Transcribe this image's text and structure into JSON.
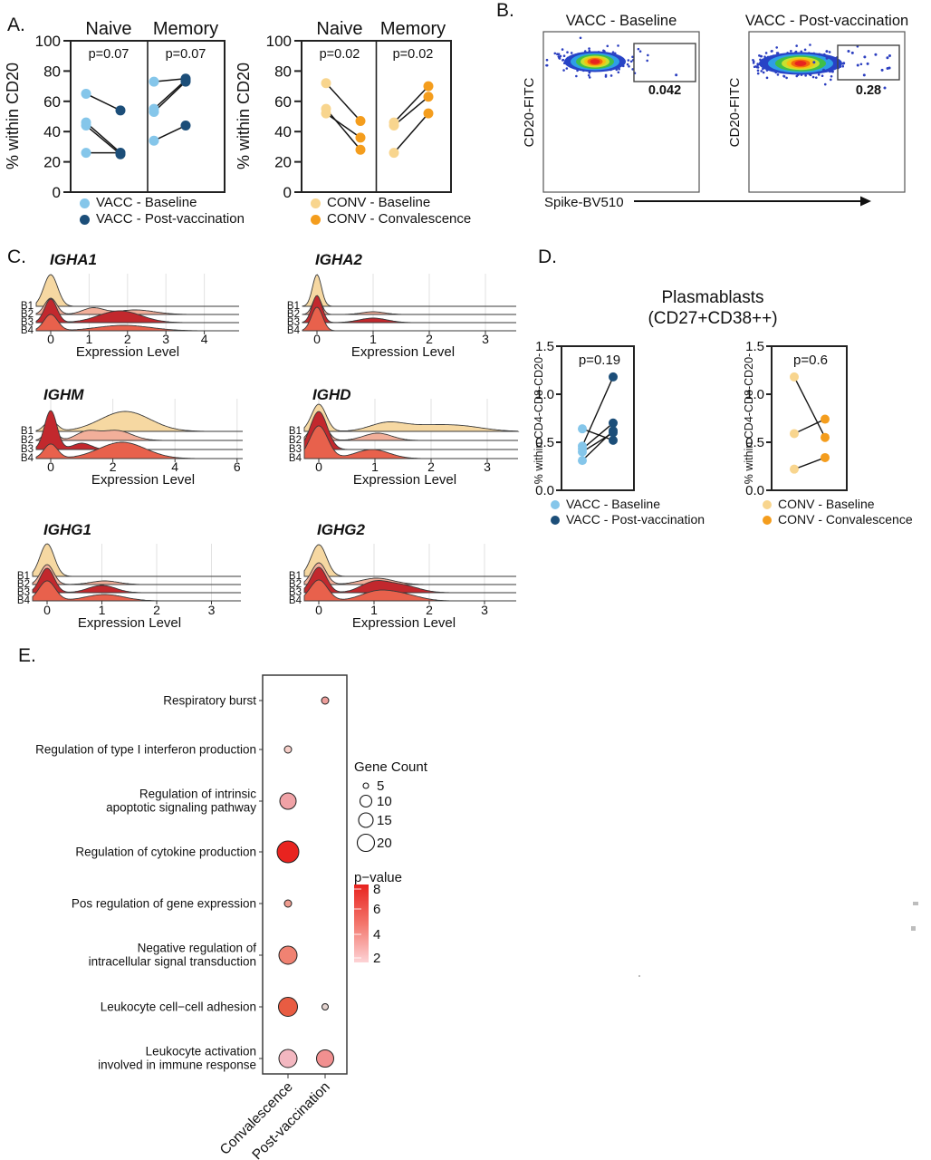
{
  "panel_labels": {
    "A": "A.",
    "B": "B.",
    "C": "C.",
    "D": "D.",
    "E": "E."
  },
  "chart_data": [
    {
      "panel": "A",
      "type": "paired-dot",
      "ylabel": "% within CD20",
      "ylim": [
        0,
        100
      ],
      "yticks": [
        "0",
        "20",
        "40",
        "60",
        "80",
        "100"
      ],
      "groups": [
        "Naive",
        "Memory"
      ],
      "plots": [
        {
          "cohort": "VACC",
          "p_values": [
            "p=0.07",
            "p=0.07"
          ],
          "colors": {
            "baseline": "#85C6EA",
            "post": "#1C4E79"
          },
          "legend": [
            "VACC - Baseline",
            "VACC - Post-vaccination"
          ],
          "pairs_naive": [
            [
              65,
              54
            ],
            [
              46,
              26
            ],
            [
              44,
              25
            ],
            [
              26,
              26
            ]
          ],
          "pairs_memory": [
            [
              73,
              75
            ],
            [
              55,
              74
            ],
            [
              53,
              73
            ],
            [
              34,
              44
            ]
          ]
        },
        {
          "cohort": "CONV",
          "p_values": [
            "p=0.02",
            "p=0.02"
          ],
          "colors": {
            "baseline": "#F8D58E",
            "post": "#F49D1D"
          },
          "legend": [
            "CONV - Baseline",
            "CONV - Convalescence"
          ],
          "pairs_naive": [
            [
              72,
              47
            ],
            [
              55,
              28
            ],
            [
              52,
              36
            ]
          ],
          "pairs_memory": [
            [
              46,
              70
            ],
            [
              44,
              63
            ],
            [
              26,
              52
            ]
          ]
        }
      ]
    },
    {
      "panel": "B",
      "type": "flow-density",
      "xlabel": "Spike-BV510",
      "ylabel": "CD20-FITC",
      "plots": [
        {
          "title": "VACC - Baseline",
          "gate_value": "0.042"
        },
        {
          "title": "VACC - Post-vaccination",
          "gate_value": "0.28"
        }
      ]
    },
    {
      "panel": "C",
      "type": "ridge",
      "xlabel": "Expression Level",
      "rows": [
        "B1",
        "B2",
        "B3",
        "B4"
      ],
      "row_colors": [
        "#F6D8A2",
        "#F2AF9A",
        "#C2282D",
        "#E8614C"
      ],
      "genes": [
        {
          "name": "IGHA1",
          "xticks": [
            0,
            1,
            2,
            3,
            4
          ],
          "density": [
            [
              [
                0,
                0.18,
                35
              ]
            ],
            [
              [
                0,
                0.16,
                18
              ],
              [
                1.1,
                0.28,
                7
              ],
              [
                2.2,
                0.5,
                5
              ]
            ],
            [
              [
                0,
                0.16,
                26
              ],
              [
                1.8,
                0.55,
                13
              ]
            ],
            [
              [
                0,
                0.18,
                18
              ],
              [
                1.9,
                0.7,
                6
              ]
            ]
          ]
        },
        {
          "name": "IGHA2",
          "xticks": [
            0,
            1,
            2,
            3
          ],
          "density": [
            [
              [
                0,
                0.08,
                35
              ]
            ],
            [
              [
                0,
                0.08,
                20
              ],
              [
                1,
                0.2,
                3
              ]
            ],
            [
              [
                0,
                0.09,
                30
              ],
              [
                1,
                0.25,
                5
              ]
            ],
            [
              [
                0,
                0.1,
                26
              ]
            ]
          ]
        },
        {
          "name": "IGHM",
          "xticks": [
            0,
            2,
            4,
            6
          ],
          "density": [
            [
              [
                0,
                0.2,
                12
              ],
              [
                2.4,
                0.8,
                22
              ]
            ],
            [
              [
                0,
                0.18,
                16
              ],
              [
                1.15,
                0.35,
                9
              ],
              [
                2.1,
                0.5,
                11
              ]
            ],
            [
              [
                0,
                0.2,
                43
              ],
              [
                1,
                0.3,
                7
              ]
            ],
            [
              [
                0,
                0.22,
                16
              ],
              [
                2.3,
                0.75,
                18
              ]
            ]
          ]
        },
        {
          "name": "IGHD",
          "xticks": [
            0,
            1,
            2,
            3
          ],
          "density": [
            [
              [
                0,
                0.13,
                30
              ],
              [
                1.2,
                0.3,
                8
              ],
              [
                1.9,
                0.5,
                6
              ],
              [
                2.6,
                0.4,
                4
              ]
            ],
            [
              [
                0,
                0.13,
                26
              ],
              [
                1.05,
                0.25,
                8
              ]
            ],
            [
              [
                0,
                0.15,
                42
              ]
            ],
            [
              [
                0,
                0.16,
                36
              ],
              [
                0.95,
                0.3,
                10
              ]
            ]
          ]
        },
        {
          "name": "IGHG1",
          "xticks": [
            0,
            1,
            2,
            3
          ],
          "density": [
            [
              [
                0,
                0.13,
                36
              ]
            ],
            [
              [
                0,
                0.12,
                22
              ],
              [
                1.05,
                0.25,
                4
              ]
            ],
            [
              [
                0,
                0.13,
                27
              ],
              [
                1,
                0.25,
                8
              ]
            ],
            [
              [
                0,
                0.15,
                22
              ],
              [
                1.05,
                0.35,
                7
              ]
            ]
          ]
        },
        {
          "name": "IGHG2",
          "xticks": [
            0,
            1,
            2,
            3
          ],
          "density": [
            [
              [
                0,
                0.14,
                35
              ]
            ],
            [
              [
                0,
                0.13,
                24
              ],
              [
                1.05,
                0.3,
                7
              ]
            ],
            [
              [
                0,
                0.14,
                28
              ],
              [
                1,
                0.25,
                11
              ],
              [
                1.5,
                0.3,
                8
              ]
            ],
            [
              [
                0,
                0.16,
                23
              ],
              [
                1.05,
                0.3,
                10
              ],
              [
                1.55,
                0.3,
                6
              ]
            ]
          ]
        }
      ]
    },
    {
      "panel": "D",
      "type": "paired-dot",
      "title": "Plasmablasts",
      "subtitle": "(CD27+CD38++)",
      "ylabel": "% within CD4-CD8-CD20-",
      "ylim": [
        0,
        1.5
      ],
      "yticks": [
        "0.0",
        "0.5",
        "1.0",
        "1.5"
      ],
      "plots": [
        {
          "cohort": "VACC",
          "p_value": "p=0.19",
          "colors": {
            "baseline": "#85C6EA",
            "post": "#1C4E79"
          },
          "legend": [
            "VACC - Baseline",
            "VACC - Post-vaccination"
          ],
          "pairs": [
            [
              0.64,
              0.52
            ],
            [
              0.46,
              1.18
            ],
            [
              0.43,
              0.7
            ],
            [
              0.4,
              0.6
            ],
            [
              0.31,
              0.62
            ]
          ]
        },
        {
          "cohort": "CONV",
          "p_value": "p=0.6",
          "colors": {
            "baseline": "#F8D58E",
            "post": "#F49D1D"
          },
          "legend": [
            "CONV - Baseline",
            "CONV - Convalescence"
          ],
          "pairs": [
            [
              1.18,
              0.55
            ],
            [
              0.59,
              0.74
            ],
            [
              0.22,
              0.34
            ]
          ]
        }
      ]
    },
    {
      "panel": "E",
      "type": "bubble",
      "categories": [
        "Convalescence",
        "Post-vaccination"
      ],
      "terms": [
        {
          "label_lines": [
            "Respiratory burst"
          ],
          "bubbles": [
            null,
            {
              "r": 4,
              "color": "#ED9E9B",
              "gene_count": 5,
              "p_value": 3
            }
          ]
        },
        {
          "label_lines": [
            "Regulation of type I interferon production"
          ],
          "bubbles": [
            {
              "r": 4,
              "color": "#F6CEC8",
              "gene_count": 5,
              "p_value": 1.5
            },
            null
          ]
        },
        {
          "label_lines": [
            "Regulation of intrinsic",
            "apoptotic signaling pathway"
          ],
          "bubbles": [
            {
              "r": 9,
              "color": "#F0A2A6",
              "gene_count": 17,
              "p_value": 3
            },
            null
          ]
        },
        {
          "label_lines": [
            "Regulation of cytokine production"
          ],
          "bubbles": [
            {
              "r": 12,
              "color": "#E8231F",
              "gene_count": 27,
              "p_value": 8
            },
            null
          ]
        },
        {
          "label_lines": [
            "Pos regulation of gene expression"
          ],
          "bubbles": [
            {
              "r": 4,
              "color": "#EE9C8F",
              "gene_count": 5,
              "p_value": 3.5
            },
            null
          ]
        },
        {
          "label_lines": [
            "Negative regulation of",
            "intracellular signal transduction"
          ],
          "bubbles": [
            {
              "r": 10,
              "color": "#F08272",
              "gene_count": 21,
              "p_value": 4.5
            },
            null
          ]
        },
        {
          "label_lines": [
            "Leukocyte cell−cell adhesion"
          ],
          "bubbles": [
            {
              "r": 10.5,
              "color": "#E85C42",
              "gene_count": 23,
              "p_value": 6
            },
            {
              "r": 3.5,
              "color": "#E3D3CF",
              "gene_count": 5,
              "p_value": 1.5
            }
          ]
        },
        {
          "label_lines": [
            "Leukocyte activation",
            "involved in immune response"
          ],
          "bubbles": [
            {
              "r": 10,
              "color": "#F3B7C0",
              "gene_count": 21,
              "p_value": 2
            },
            {
              "r": 9.5,
              "color": "#F19090",
              "gene_count": 20,
              "p_value": 3.5
            }
          ]
        }
      ],
      "legend_size": {
        "title": "Gene Count",
        "entries": [
          {
            "label": "5",
            "r": 3
          },
          {
            "label": "10",
            "r": 6.5
          },
          {
            "label": "15",
            "r": 8
          },
          {
            "label": "20",
            "r": 9.5
          }
        ]
      },
      "legend_color": {
        "title": "p−value",
        "ticks": [
          "8",
          "6",
          "4",
          "2"
        ],
        "top_color": "#E8231F",
        "mid_color": "#F3756B",
        "bottom_color": "#FDD3D6"
      }
    }
  ]
}
